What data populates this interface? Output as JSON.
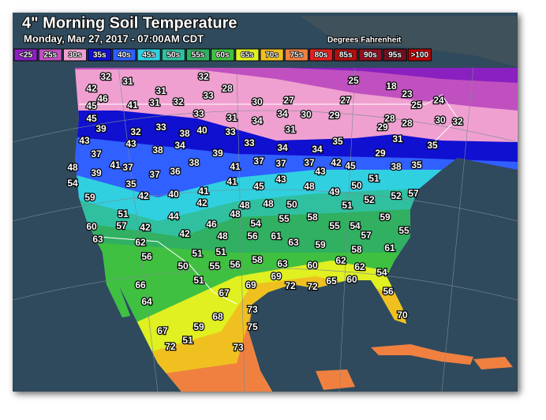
{
  "header": {
    "title": "4\" Morning Soil Temperature",
    "subtitle": "Monday, Mar 27, 2017 - 07:00AM CDT",
    "units": "Degrees Fahrenheit"
  },
  "legend": [
    {
      "label": "<25",
      "color": "#8a20c0"
    },
    {
      "label": "25s",
      "color": "#c050c0"
    },
    {
      "label": "30s",
      "color": "#f0a0d0"
    },
    {
      "label": "35s",
      "color": "#1010d0"
    },
    {
      "label": "40s",
      "color": "#3060ff"
    },
    {
      "label": "45s",
      "color": "#30d0e0"
    },
    {
      "label": "50s",
      "color": "#30c0a0"
    },
    {
      "label": "55s",
      "color": "#30b060"
    },
    {
      "label": "60s",
      "color": "#40c040"
    },
    {
      "label": "65s",
      "color": "#e0f020"
    },
    {
      "label": "70s",
      "color": "#f0c020"
    },
    {
      "label": "75s",
      "color": "#f08040"
    },
    {
      "label": "80s",
      "color": "#e02020"
    },
    {
      "label": "85s",
      "color": "#b01010"
    },
    {
      "label": "90s",
      "color": "#901020"
    },
    {
      "label": "95s",
      "color": "#701020"
    },
    {
      "label": ">100",
      "color": "#c00000"
    }
  ],
  "readings": [
    42,
    32,
    31,
    32,
    28,
    33,
    30,
    27,
    25,
    18,
    23,
    25,
    24,
    27,
    46,
    45,
    41,
    31,
    31,
    32,
    33,
    31,
    34,
    34,
    30,
    29,
    28,
    28,
    30,
    32,
    29,
    45,
    39,
    32,
    33,
    38,
    40,
    33,
    31,
    33,
    35,
    31,
    35,
    43,
    43,
    38,
    34,
    39,
    34,
    34,
    29,
    37,
    48,
    41,
    37,
    37,
    36,
    38,
    41,
    37,
    37,
    37,
    43,
    42,
    45,
    38,
    35,
    54,
    39,
    35,
    42,
    40,
    41,
    41,
    45,
    43,
    48,
    49,
    50,
    51,
    52,
    57,
    59,
    42,
    48,
    48,
    50,
    51,
    52,
    48,
    51,
    44,
    54,
    55,
    58,
    55,
    54,
    59,
    60,
    57,
    42,
    42,
    46,
    48,
    56,
    61,
    63,
    57,
    55,
    63,
    62,
    51,
    51,
    59,
    58,
    61,
    56,
    50,
    55,
    56,
    58,
    63,
    60,
    62,
    62,
    54,
    51,
    69,
    69,
    72,
    72,
    66,
    64,
    67,
    60,
    65,
    56,
    73,
    68,
    59,
    70,
    67,
    75,
    72,
    51,
    73
  ]
}
